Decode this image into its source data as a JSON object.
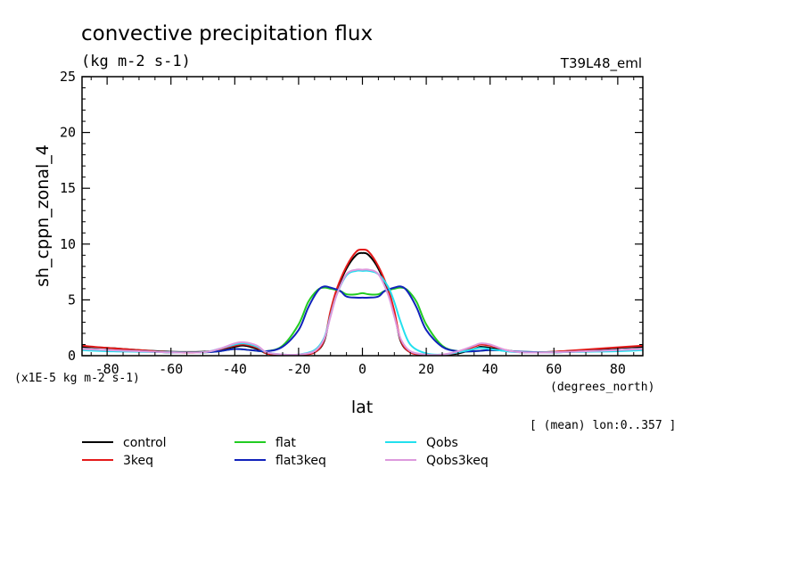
{
  "chart_data": {
    "type": "line",
    "title": "convective precipitation flux",
    "units": "(kg m-2 s-1)",
    "experiment": "T39L48_eml",
    "ylabel": "sh_cppn_zonal_4",
    "xlabel": "lat",
    "xunits": "(degrees_north)",
    "yscale_note": "(x1E-5 kg m-2 s-1)",
    "averaging_note": "[ (mean) lon:0..357 ]",
    "xlim": [
      -87.86,
      87.86
    ],
    "ylim": [
      0,
      25
    ],
    "xticks": [
      -80,
      -60,
      -40,
      -20,
      0,
      20,
      40,
      60,
      80
    ],
    "yticks": [
      0,
      5,
      10,
      15,
      20,
      25
    ],
    "legend_position": "bottom",
    "series": [
      {
        "name": "control",
        "color": "#000000",
        "x": [
          -88,
          -80,
          -70,
          -60,
          -50,
          -45,
          -40,
          -37,
          -33,
          -30,
          -25,
          -20,
          -15,
          -12,
          -10,
          -8,
          -5,
          -2,
          0,
          2,
          5,
          8,
          10,
          12,
          15,
          20,
          25,
          30,
          35,
          37,
          40,
          45,
          50,
          55,
          60,
          70,
          80,
          88
        ],
        "y": [
          0.8,
          0.7,
          0.5,
          0.35,
          0.35,
          0.5,
          0.8,
          0.9,
          0.6,
          0.2,
          0.05,
          0.05,
          0.3,
          1.3,
          3.8,
          5.8,
          7.8,
          9.0,
          9.2,
          9.0,
          7.8,
          5.8,
          3.8,
          1.3,
          0.3,
          0.05,
          0.05,
          0.2,
          0.6,
          0.8,
          0.7,
          0.45,
          0.3,
          0.3,
          0.35,
          0.5,
          0.7,
          0.8
        ]
      },
      {
        "name": "3keq",
        "color": "#e41a1a",
        "x": [
          -88,
          -80,
          -70,
          -60,
          -50,
          -45,
          -40,
          -37,
          -33,
          -30,
          -25,
          -20,
          -15,
          -12,
          -10,
          -8,
          -5,
          -2,
          0,
          2,
          5,
          8,
          10,
          12,
          15,
          20,
          25,
          30,
          35,
          37,
          40,
          45,
          50,
          55,
          60,
          70,
          80,
          88
        ],
        "y": [
          0.9,
          0.7,
          0.5,
          0.3,
          0.3,
          0.55,
          0.9,
          1.0,
          0.7,
          0.2,
          0.05,
          0.05,
          0.3,
          1.4,
          4.0,
          6.0,
          8.0,
          9.3,
          9.5,
          9.3,
          8.0,
          6.0,
          4.0,
          1.4,
          0.3,
          0.05,
          0.05,
          0.3,
          0.8,
          1.0,
          0.9,
          0.5,
          0.3,
          0.3,
          0.35,
          0.55,
          0.75,
          0.9
        ]
      },
      {
        "name": "flat",
        "color": "#22cc22",
        "x": [
          -88,
          -80,
          -70,
          -60,
          -50,
          -45,
          -40,
          -35,
          -30,
          -25,
          -20,
          -17,
          -14,
          -12,
          -10,
          -7,
          -5,
          -2,
          0,
          2,
          5,
          7,
          10,
          12,
          14,
          17,
          20,
          25,
          30,
          35,
          40,
          45,
          50,
          60,
          70,
          80,
          88
        ],
        "y": [
          0.6,
          0.5,
          0.4,
          0.3,
          0.3,
          0.4,
          0.6,
          0.5,
          0.4,
          0.9,
          2.8,
          4.8,
          5.9,
          6.1,
          6.0,
          5.8,
          5.5,
          5.5,
          5.6,
          5.5,
          5.5,
          5.8,
          6.0,
          6.1,
          5.9,
          4.8,
          2.8,
          0.9,
          0.4,
          0.4,
          0.5,
          0.45,
          0.35,
          0.3,
          0.4,
          0.5,
          0.6
        ]
      },
      {
        "name": "flat3keq",
        "color": "#1122bb",
        "x": [
          -88,
          -80,
          -70,
          -60,
          -50,
          -45,
          -40,
          -35,
          -30,
          -25,
          -20,
          -17,
          -14,
          -12,
          -10,
          -7,
          -5,
          -2,
          0,
          2,
          5,
          7,
          10,
          12,
          14,
          17,
          20,
          25,
          30,
          35,
          40,
          45,
          50,
          60,
          70,
          80,
          88
        ],
        "y": [
          0.6,
          0.5,
          0.4,
          0.3,
          0.3,
          0.4,
          0.6,
          0.5,
          0.4,
          0.8,
          2.3,
          4.3,
          5.8,
          6.2,
          6.1,
          5.8,
          5.3,
          5.2,
          5.2,
          5.2,
          5.3,
          5.8,
          6.1,
          6.2,
          5.8,
          4.3,
          2.3,
          0.8,
          0.4,
          0.4,
          0.5,
          0.45,
          0.35,
          0.3,
          0.4,
          0.5,
          0.6
        ]
      },
      {
        "name": "Qobs",
        "color": "#22e0ee",
        "x": [
          -88,
          -80,
          -70,
          -60,
          -50,
          -45,
          -40,
          -37,
          -33,
          -30,
          -25,
          -20,
          -15,
          -12,
          -10,
          -8,
          -5,
          -2,
          0,
          2,
          5,
          8,
          10,
          12,
          15,
          20,
          25,
          30,
          35,
          37,
          40,
          45,
          50,
          60,
          70,
          80,
          88
        ],
        "y": [
          0.5,
          0.4,
          0.35,
          0.3,
          0.3,
          0.6,
          1.0,
          1.1,
          0.8,
          0.3,
          0.1,
          0.1,
          0.5,
          1.6,
          3.6,
          5.5,
          7.2,
          7.6,
          7.6,
          7.6,
          7.3,
          6.2,
          4.8,
          3.0,
          1.0,
          0.2,
          0.1,
          0.3,
          0.6,
          0.7,
          0.6,
          0.4,
          0.3,
          0.3,
          0.35,
          0.4,
          0.5
        ]
      },
      {
        "name": "Qobs3keq",
        "color": "#dd99dd",
        "x": [
          -88,
          -80,
          -70,
          -60,
          -50,
          -45,
          -40,
          -37,
          -33,
          -30,
          -25,
          -20,
          -15,
          -12,
          -10,
          -8,
          -5,
          -2,
          0,
          2,
          5,
          8,
          10,
          12,
          15,
          20,
          25,
          30,
          35,
          37,
          40,
          45,
          50,
          60,
          70,
          80,
          88
        ],
        "y": [
          0.6,
          0.5,
          0.4,
          0.3,
          0.3,
          0.6,
          1.1,
          1.2,
          0.9,
          0.3,
          0.1,
          0.1,
          0.4,
          1.5,
          3.5,
          5.5,
          7.3,
          7.7,
          7.7,
          7.7,
          7.3,
          5.5,
          3.5,
          1.5,
          0.4,
          0.1,
          0.1,
          0.4,
          0.9,
          1.1,
          1.0,
          0.5,
          0.3,
          0.3,
          0.4,
          0.5,
          0.6
        ]
      }
    ]
  }
}
